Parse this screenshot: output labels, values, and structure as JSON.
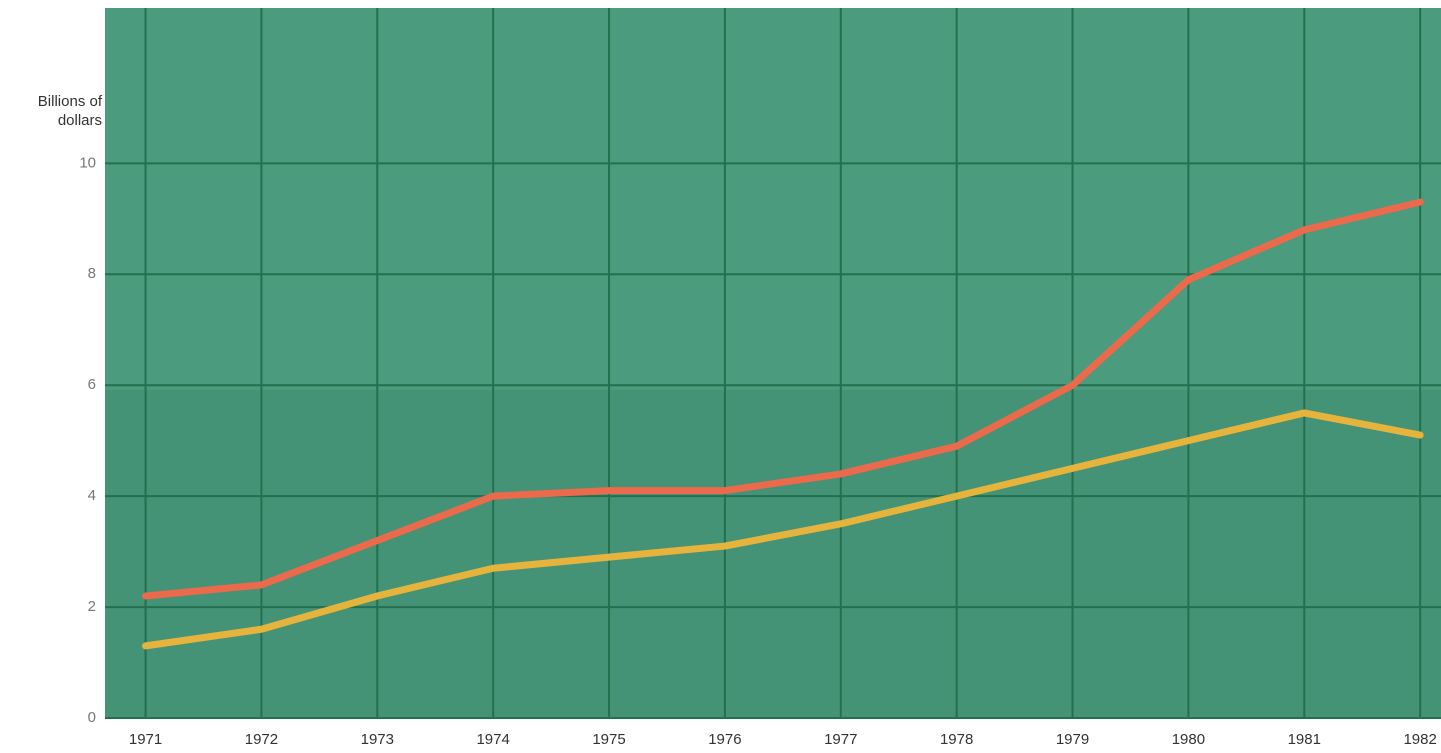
{
  "chart_data": {
    "type": "line",
    "y_label": "Billions of dollars",
    "x": [
      1971,
      1972,
      1973,
      1974,
      1975,
      1976,
      1977,
      1978,
      1979,
      1980,
      1981,
      1982
    ],
    "series": [
      {
        "color": "#ec6a4c",
        "values": [
          2.2,
          2.4,
          3.2,
          4.0,
          4.1,
          4.1,
          4.4,
          4.9,
          6.0,
          7.9,
          8.8,
          9.3
        ]
      },
      {
        "color": "#e6b43c",
        "values": [
          1.3,
          1.6,
          2.2,
          2.7,
          2.9,
          3.1,
          3.5,
          4.0,
          4.5,
          5.0,
          5.5,
          5.1
        ]
      }
    ],
    "xlim": [
      1970.65,
      1982.18
    ],
    "xticks": [
      1971,
      1972,
      1973,
      1974,
      1975,
      1976,
      1977,
      1978,
      1979,
      1980,
      1981,
      1982
    ],
    "ylim": [
      0,
      12.8
    ],
    "yticks": [
      0,
      2,
      4,
      6,
      8,
      10
    ],
    "grid": true
  }
}
